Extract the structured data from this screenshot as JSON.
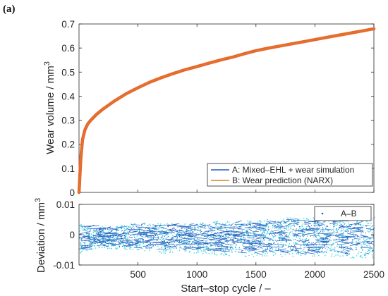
{
  "panel_label": "(a)",
  "colors": {
    "series_a": "#1f5fbf",
    "series_b": "#d9812a",
    "wear_band": "#f0642a",
    "deviation_light": "#3fd9e6",
    "deviation_dark": "#1f5fbf",
    "axis": "#262626",
    "background": "#ffffff"
  },
  "chart_data": [
    {
      "type": "line",
      "xlim": [
        0,
        2500
      ],
      "ylim": [
        0,
        0.7
      ],
      "yticks": [
        0,
        0.1,
        0.2,
        0.3,
        0.4,
        0.5,
        0.6,
        0.7
      ],
      "ytick_labels": [
        "0",
        "0.1",
        "0.2",
        "0.3",
        "0.4",
        "0.5",
        "0.6",
        "0.7"
      ],
      "xlabel": "",
      "ylabel": "Wear volume / mm",
      "ylabel_superscript": "3",
      "grid": false,
      "legend_position": "bottom-right",
      "series": [
        {
          "name": "A: Mixed–EHL + wear simulation",
          "x": [
            0,
            15,
            30,
            50,
            75,
            100,
            150,
            200,
            300,
            400,
            500,
            600,
            700,
            800,
            900,
            1000,
            1100,
            1200,
            1300,
            1400,
            1500,
            1600,
            1700,
            1800,
            1900,
            2000,
            2100,
            2200,
            2300,
            2400,
            2500
          ],
          "y": [
            0,
            0.14,
            0.22,
            0.26,
            0.285,
            0.3,
            0.325,
            0.345,
            0.38,
            0.41,
            0.435,
            0.458,
            0.477,
            0.494,
            0.51,
            0.523,
            0.537,
            0.55,
            0.562,
            0.576,
            0.589,
            0.599,
            0.608,
            0.617,
            0.626,
            0.635,
            0.644,
            0.653,
            0.662,
            0.671,
            0.68
          ]
        },
        {
          "name": "B: Wear prediction (NARX)",
          "x": [
            0,
            15,
            30,
            50,
            75,
            100,
            150,
            200,
            300,
            400,
            500,
            600,
            700,
            800,
            900,
            1000,
            1100,
            1200,
            1300,
            1400,
            1500,
            1600,
            1700,
            1800,
            1900,
            2000,
            2100,
            2200,
            2300,
            2400,
            2500
          ],
          "y": [
            0,
            0.14,
            0.22,
            0.26,
            0.285,
            0.3,
            0.325,
            0.345,
            0.38,
            0.41,
            0.435,
            0.458,
            0.477,
            0.494,
            0.51,
            0.523,
            0.537,
            0.55,
            0.562,
            0.576,
            0.589,
            0.599,
            0.608,
            0.617,
            0.626,
            0.635,
            0.644,
            0.653,
            0.662,
            0.671,
            0.68
          ]
        }
      ]
    },
    {
      "type": "scatter",
      "xlim": [
        0,
        2500
      ],
      "ylim": [
        -0.01,
        0.01
      ],
      "xticks": [
        500,
        1000,
        1500,
        2000,
        2500
      ],
      "xtick_labels": [
        "500",
        "1000",
        "1500",
        "2000",
        "2500"
      ],
      "yticks": [
        -0.01,
        0,
        0.01
      ],
      "ytick_labels": [
        "-0.01",
        "0",
        "0.01"
      ],
      "xlabel": "Start–stop cycle / –",
      "ylabel": "Deviation / mm",
      "ylabel_superscript": "3",
      "grid": false,
      "legend_position": "top-right",
      "series": [
        {
          "name": "A–B",
          "x": [
            0,
            100,
            200,
            300,
            400,
            500,
            700,
            1000,
            1300,
            1500,
            1800,
            2100,
            2500
          ],
          "y_min": [
            -0.006,
            -0.005,
            -0.004,
            -0.005,
            -0.005,
            -0.005,
            -0.006,
            -0.006,
            -0.007,
            -0.007,
            -0.007,
            -0.007,
            -0.008
          ],
          "y_max": [
            0.004,
            0.003,
            0.003,
            0.003,
            0.004,
            0.004,
            0.004,
            0.004,
            0.005,
            0.005,
            0.006,
            0.006,
            0.006
          ]
        }
      ]
    }
  ]
}
